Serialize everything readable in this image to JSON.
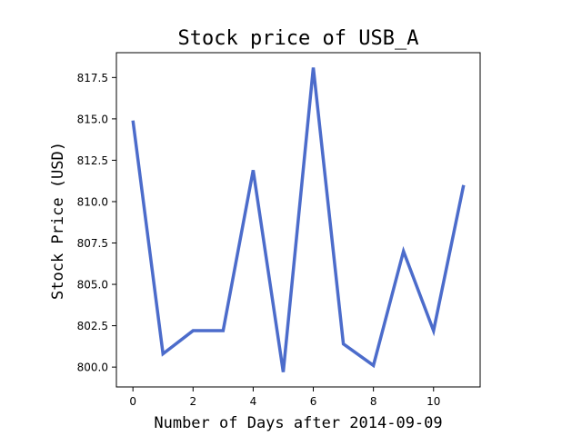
{
  "chart_data": {
    "type": "line",
    "title": "Stock price of USB_A",
    "xlabel": "Number of Days after 2014-09-09",
    "ylabel": "Stock Price (USD)",
    "x": [
      0,
      1,
      2,
      3,
      4,
      5,
      6,
      7,
      8,
      9,
      10,
      11
    ],
    "series": [
      {
        "values": [
          814.9,
          800.8,
          802.2,
          802.2,
          811.9,
          799.7,
          818.1,
          801.4,
          800.1,
          807.0,
          802.2,
          811.0
        ],
        "color": "#4c6ccb"
      }
    ],
    "xlim": [
      -0.55,
      11.55
    ],
    "ylim": [
      798.8,
      819.0
    ],
    "xticks": [
      0,
      2,
      4,
      6,
      8,
      10
    ],
    "yticks": [
      800.0,
      802.5,
      805.0,
      807.5,
      810.0,
      812.5,
      815.0,
      817.5
    ],
    "ytick_labels": [
      "800.0",
      "802.5",
      "805.0",
      "807.5",
      "810.0",
      "812.5",
      "815.0",
      "817.5"
    ],
    "grid": false
  }
}
